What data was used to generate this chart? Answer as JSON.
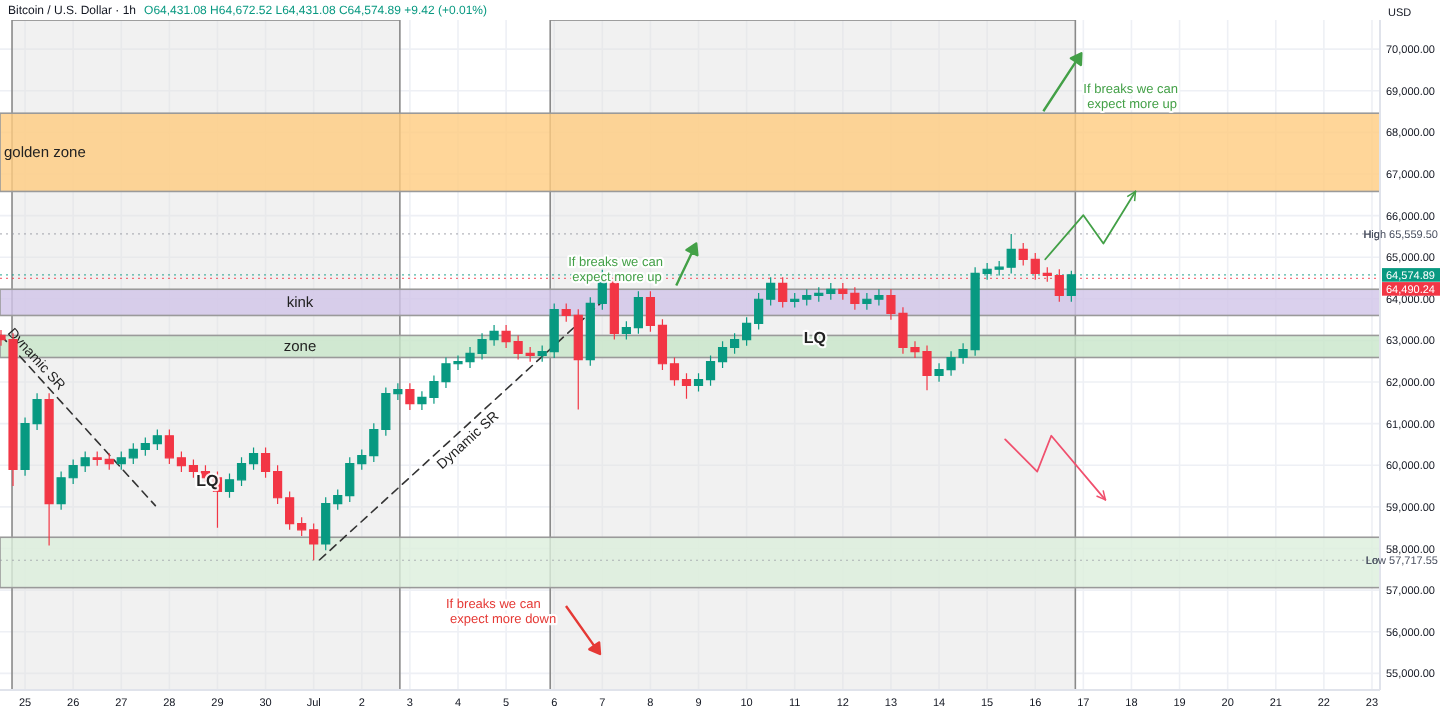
{
  "chart_data": {
    "type": "candlestick",
    "title": "Bitcoin / U.S. Dollar · 1h",
    "subtitle": "O64,431.08 H64,672.52 L64,431.08 C64,574.89 +9.42 (+0.01%)",
    "ylabel": "USD",
    "x": [
      "--06-24T12:00",
      "--06-24T18:00",
      "--06-25T00:00",
      "--06-25T06:00",
      "--06-25T12:00",
      "--06-25T18:00",
      "--06-26T00:00",
      "--06-26T06:00",
      "--06-26T12:00",
      "--06-26T18:00",
      "--06-27T00:00",
      "--06-27T06:00",
      "--06-27T12:00",
      "--06-27T18:00",
      "--06-28T00:00",
      "--06-28T06:00",
      "--06-28T12:00",
      "--06-28T18:00",
      "--06-29T00:00",
      "--06-29T06:00",
      "--06-29T12:00",
      "--06-29T18:00",
      "--06-30T00:00",
      "--06-30T06:00",
      "--06-30T12:00",
      "--06-30T18:00",
      "--07-01T00:00",
      "--07-01T06:00",
      "--07-01T12:00",
      "--07-01T18:00",
      "--07-02T00:00",
      "--07-02T06:00",
      "--07-02T12:00",
      "--07-02T18:00",
      "--07-03T00:00",
      "--07-03T06:00",
      "--07-03T12:00",
      "--07-03T18:00",
      "--07-04T00:00",
      "--07-04T06:00",
      "--07-04T12:00",
      "--07-04T18:00",
      "--07-05T00:00",
      "--07-05T06:00",
      "--07-05T12:00",
      "--07-05T18:00",
      "--07-06T00:00",
      "--07-06T06:00",
      "--07-06T12:00",
      "--07-06T18:00",
      "--07-07T00:00",
      "--07-07T06:00",
      "--07-07T12:00",
      "--07-07T18:00",
      "--07-08T00:00",
      "--07-08T06:00",
      "--07-08T12:00",
      "--07-08T18:00",
      "--07-09T00:00",
      "--07-09T06:00",
      "--07-09T12:00",
      "--07-09T18:00",
      "--07-10T00:00",
      "--07-10T06:00",
      "--07-10T12:00",
      "--07-10T18:00",
      "--07-11T00:00",
      "--07-11T06:00",
      "--07-11T12:00",
      "--07-11T18:00",
      "--07-12T00:00",
      "--07-12T06:00",
      "--07-12T12:00",
      "--07-12T18:00",
      "--07-13T00:00",
      "--07-13T06:00",
      "--07-13T12:00",
      "--07-13T18:00",
      "--07-14T00:00",
      "--07-14T06:00",
      "--07-14T12:00",
      "--07-14T18:00",
      "--07-15T00:00",
      "--07-15T06:00",
      "--07-15T12:00",
      "--07-15T18:00",
      "--07-16T00:00",
      "--07-16T06:00",
      "--07-16T12:00",
      "--07-16T18:00"
    ],
    "ohlc": [
      [
        63120,
        63250,
        62870,
        63020
      ],
      [
        63020,
        63170,
        59500,
        59900
      ],
      [
        59900,
        61150,
        59750,
        61000
      ],
      [
        61000,
        61730,
        60850,
        61580
      ],
      [
        61580,
        61730,
        58070,
        59080
      ],
      [
        59080,
        59850,
        58930,
        59700
      ],
      [
        59700,
        60140,
        59550,
        59990
      ],
      [
        59990,
        60330,
        59840,
        60180
      ],
      [
        60180,
        60330,
        59990,
        60140
      ],
      [
        60140,
        60290,
        59890,
        60040
      ],
      [
        60040,
        60330,
        59890,
        60180
      ],
      [
        60180,
        60530,
        60030,
        60380
      ],
      [
        60380,
        60670,
        60230,
        60520
      ],
      [
        60520,
        60860,
        60370,
        60710
      ],
      [
        60710,
        60860,
        60030,
        60180
      ],
      [
        60180,
        60330,
        59840,
        59990
      ],
      [
        59990,
        60140,
        59700,
        59850
      ],
      [
        59850,
        60000,
        59550,
        59700
      ],
      [
        59700,
        59850,
        58500,
        59370
      ],
      [
        59370,
        59800,
        59220,
        59650
      ],
      [
        59650,
        60190,
        59500,
        60040
      ],
      [
        60040,
        60430,
        59890,
        60280
      ],
      [
        60280,
        60430,
        59700,
        59850
      ],
      [
        59850,
        60000,
        59070,
        59220
      ],
      [
        59220,
        59370,
        58450,
        58600
      ],
      [
        58600,
        58750,
        58300,
        58450
      ],
      [
        58450,
        58600,
        57717.55,
        58110
      ],
      [
        58110,
        59230,
        57960,
        59080
      ],
      [
        59080,
        59420,
        58930,
        59270
      ],
      [
        59270,
        60190,
        59120,
        60040
      ],
      [
        60040,
        60380,
        59890,
        60230
      ],
      [
        60230,
        61010,
        60080,
        60860
      ],
      [
        60860,
        61870,
        60710,
        61720
      ],
      [
        61720,
        61970,
        61570,
        61820
      ],
      [
        61820,
        61970,
        61330,
        61480
      ],
      [
        61480,
        61780,
        61330,
        61630
      ],
      [
        61630,
        62160,
        61480,
        62010
      ],
      [
        62010,
        62590,
        61860,
        62440
      ],
      [
        62440,
        62640,
        62290,
        62490
      ],
      [
        62490,
        62840,
        62340,
        62690
      ],
      [
        62690,
        63170,
        62540,
        63020
      ],
      [
        63020,
        63370,
        62870,
        63220
      ],
      [
        63220,
        63370,
        62820,
        62970
      ],
      [
        62970,
        63120,
        62540,
        62690
      ],
      [
        62690,
        62840,
        62490,
        62640
      ],
      [
        62640,
        62880,
        62490,
        62730
      ],
      [
        62730,
        63890,
        62580,
        63740
      ],
      [
        63740,
        63890,
        63450,
        63600
      ],
      [
        63600,
        63750,
        61340,
        62540
      ],
      [
        62540,
        64040,
        62390,
        63890
      ],
      [
        63890,
        64700,
        63740,
        64420
      ],
      [
        64420,
        64570,
        63020,
        63170
      ],
      [
        63170,
        63460,
        63020,
        63310
      ],
      [
        63310,
        64180,
        63160,
        64030
      ],
      [
        64030,
        64180,
        63210,
        63360
      ],
      [
        63360,
        63510,
        62290,
        62440
      ],
      [
        62440,
        62590,
        61910,
        62060
      ],
      [
        62060,
        62210,
        61600,
        61920
      ],
      [
        61920,
        62210,
        61770,
        62060
      ],
      [
        62060,
        62640,
        61910,
        62490
      ],
      [
        62490,
        62980,
        62340,
        62830
      ],
      [
        62830,
        63170,
        62680,
        63020
      ],
      [
        63020,
        63560,
        62870,
        63410
      ],
      [
        63410,
        64140,
        63260,
        63990
      ],
      [
        63990,
        64520,
        63840,
        64370
      ],
      [
        64370,
        64520,
        63790,
        63940
      ],
      [
        63940,
        64140,
        63790,
        63990
      ],
      [
        63990,
        64230,
        63840,
        64080
      ],
      [
        64080,
        64280,
        63930,
        64130
      ],
      [
        64130,
        64380,
        63980,
        64230
      ],
      [
        64230,
        64380,
        63980,
        64130
      ],
      [
        64130,
        64280,
        63740,
        63890
      ],
      [
        63890,
        64140,
        63740,
        63990
      ],
      [
        63990,
        64230,
        63840,
        64080
      ],
      [
        64080,
        64230,
        63500,
        63650
      ],
      [
        63650,
        63800,
        62680,
        62830
      ],
      [
        62830,
        62980,
        62580,
        62730
      ],
      [
        62730,
        62880,
        61800,
        62160
      ],
      [
        62160,
        62450,
        62010,
        62300
      ],
      [
        62300,
        62740,
        62150,
        62590
      ],
      [
        62590,
        62930,
        62440,
        62780
      ],
      [
        62780,
        64760,
        62630,
        64610
      ],
      [
        64610,
        64860,
        64460,
        64710
      ],
      [
        64710,
        64910,
        64560,
        64760
      ],
      [
        64760,
        65559.5,
        64610,
        65190
      ],
      [
        65190,
        65340,
        64800,
        64950
      ],
      [
        64950,
        65100,
        64460,
        64610
      ],
      [
        64610,
        64760,
        64410,
        64560
      ],
      [
        64560,
        64710,
        63930,
        64080
      ],
      [
        64080,
        64672.52,
        63930,
        64574.89
      ]
    ],
    "series": [
      {
        "type": "line",
        "name": "Dynamic SR",
        "color": "#333333",
        "line_style": "dashed",
        "x": [
          "--06-24T12:00",
          "--06-27T17:00"
        ],
        "values": [
          63120,
          59030
        ]
      },
      {
        "type": "line",
        "name": "Dynamic SR",
        "color": "#333333",
        "line_style": "dashed",
        "x": [
          "--07-01T03:00",
          "--07-06T23:00"
        ],
        "values": [
          57730,
          63890
        ]
      },
      {
        "type": "line",
        "color": "#43a047",
        "line_style": "solid",
        "x": [
          "--07-16T05:00",
          "--07-17T00:00",
          "--07-17T10:00",
          "--07-18T02:00"
        ],
        "values": [
          64950,
          66010,
          65330,
          66580
        ]
      },
      {
        "type": "line",
        "color": "#f0506e",
        "line_style": "solid",
        "x": [
          "--07-15T09:00",
          "--07-16T01:00",
          "--07-16T08:00",
          "--07-17T11:00"
        ],
        "values": [
          60620,
          59850,
          60710,
          59170
        ]
      }
    ],
    "bands": [
      {
        "axis": "x",
        "from": "--06-24T17:30",
        "to": "--07-02T19:00",
        "color": "#e0e0e0"
      },
      {
        "axis": "x",
        "from": "--07-05T22:00",
        "to": "--07-16T20:00",
        "color": "#e0e0e0"
      },
      {
        "axis": "y",
        "from": 66580,
        "to": 68460,
        "label": "golden zone",
        "color": "#ffcc80"
      },
      {
        "axis": "y",
        "from": 63600,
        "to": 64230,
        "label": "kink",
        "color": "#d1c4e9"
      },
      {
        "axis": "y",
        "from": 62590,
        "to": 63120,
        "label": "zone",
        "color": "#c8e6c9"
      },
      {
        "axis": "y",
        "from": 57060,
        "to": 58270,
        "color": "#dcefdc"
      }
    ],
    "ref_lines": [
      {
        "axis": "y",
        "value": 65559.5,
        "label": "High 65,559.50",
        "line_style": "dotted"
      },
      {
        "axis": "y",
        "value": 64574.89,
        "label": "64,574.89",
        "color": "#089981",
        "line_style": "dotted"
      },
      {
        "axis": "y",
        "value": 64490.24,
        "label": "64,490.24",
        "color": "#f23645",
        "line_style": "dotted"
      },
      {
        "axis": "y",
        "value": 57717.55,
        "label": "Low 57,717.55",
        "line_style": "dotted"
      }
    ],
    "annotations": [
      {
        "text": "If breaks we can expect more up",
        "x": "--07-17T00:00",
        "y": 68940
      },
      {
        "text": "If breaks we can expect more up",
        "x": "--07-06T07:00",
        "y": 64800
      },
      "If breaks we can expect more down",
      {
        "text": "LQ",
        "x": "--06-28T19:00",
        "y": 59510
      },
      {
        "text": "LQ",
        "x": "--07-11T10:00",
        "y": 62930
      }
    ],
    "xlim": [
      "--06-24T11:30",
      "--07-23T04:00"
    ],
    "xticks": [
      {
        "value": "--06-25",
        "label": "25"
      },
      {
        "value": "--06-26",
        "label": "26"
      },
      {
        "value": "--06-27",
        "label": "27"
      },
      {
        "value": "--06-28",
        "label": "28"
      },
      {
        "value": "--06-29",
        "label": "29"
      },
      {
        "value": "--06-30",
        "label": "30"
      },
      {
        "value": "--07-01",
        "label": "Jul"
      },
      {
        "value": "--07-02",
        "label": "2"
      },
      {
        "value": "--07-03",
        "label": "3"
      },
      {
        "value": "--07-04",
        "label": "4"
      },
      {
        "value": "--07-05",
        "label": "5"
      },
      {
        "value": "--07-06",
        "label": "6"
      },
      {
        "value": "--07-07",
        "label": "7"
      },
      {
        "value": "--07-08",
        "label": "8"
      },
      {
        "value": "--07-09",
        "label": "9"
      },
      {
        "value": "--07-10",
        "label": "10"
      },
      {
        "value": "--07-11",
        "label": "11"
      },
      {
        "value": "--07-12",
        "label": "12"
      },
      {
        "value": "--07-13",
        "label": "13"
      },
      {
        "value": "--07-14",
        "label": "14"
      },
      {
        "value": "--07-15",
        "label": "15"
      },
      {
        "value": "--07-16",
        "label": "16"
      },
      {
        "value": "--07-17",
        "label": "17"
      },
      {
        "value": "--07-18",
        "label": "18"
      },
      {
        "value": "--07-19",
        "label": "19"
      },
      {
        "value": "--07-20",
        "label": "20"
      },
      {
        "value": "--07-21",
        "label": "21"
      },
      {
        "value": "--07-22",
        "label": "22"
      },
      {
        "value": "--07-23",
        "label": "23"
      }
    ],
    "ylim": [
      54600,
      70700
    ],
    "yticks": [
      {
        "value": 55000,
        "label": "55,000.00"
      },
      {
        "value": 56000,
        "label": "56,000.00"
      },
      {
        "value": 57000,
        "label": "57,000.00"
      },
      {
        "value": 58000,
        "label": "58,000.00"
      },
      {
        "value": 59000,
        "label": "59,000.00"
      },
      {
        "value": 60000,
        "label": "60,000.00"
      },
      {
        "value": 61000,
        "label": "61,000.00"
      },
      {
        "value": 62000,
        "label": "62,000.00"
      },
      {
        "value": 63000,
        "label": "63,000.00"
      },
      {
        "value": 64000,
        "label": "64,000.00"
      },
      {
        "value": 65000,
        "label": "65,000.00"
      },
      {
        "value": 66000,
        "label": "66,000.00"
      },
      {
        "value": 67000,
        "label": "67,000.00"
      },
      {
        "value": 68000,
        "label": "68,000.00"
      },
      {
        "value": 69000,
        "label": "69,000.00"
      },
      {
        "value": 70000,
        "label": "70,000.00"
      }
    ],
    "grid": true
  }
}
